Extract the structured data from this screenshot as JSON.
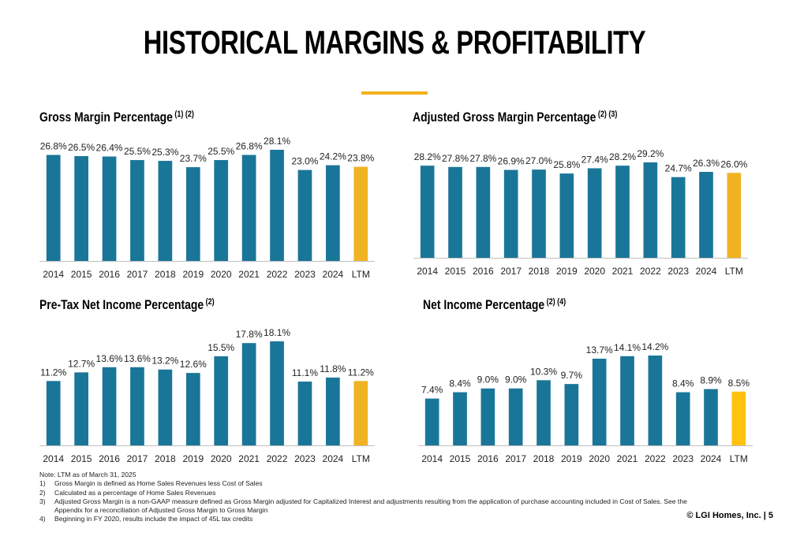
{
  "page": {
    "title": "HISTORICAL MARGINS & PROFITABILITY",
    "footer": "© LGI Homes, Inc. | 5"
  },
  "notes": {
    "lead": "Note: LTM as of March 31, 2025",
    "items": [
      {
        "num": "1)",
        "text": "Gross Margin is defined as Home Sales Revenues less Cost of Sales"
      },
      {
        "num": "2)",
        "text": "Calculated as a percentage of Home Sales Revenues"
      },
      {
        "num": "3)",
        "text": "Adjusted Gross Margin is a non-GAAP measure defined as Gross Margin adjusted for Capitalized Interest and adjustments resulting from the application of purchase accounting included in Cost of Sales. See the Appendix for a reconciliation of Adjusted Gross Margin to Gross Margin"
      },
      {
        "num": "4)",
        "text": "Beginning in FY 2020, results include the impact of 45L tax credits"
      }
    ]
  },
  "colors": {
    "bar": "#1a7698",
    "highlight": "#f0b323",
    "highlight_alt": "#ffc20e",
    "axis": "#bfbfbf",
    "accent_rule": "#f2b21c"
  },
  "chart_data": [
    {
      "type": "bar",
      "title": "Gross Margin Percentage",
      "title_notes": "(1) (2)",
      "categories": [
        "2014",
        "2015",
        "2016",
        "2017",
        "2018",
        "2019",
        "2020",
        "2021",
        "2022",
        "2023",
        "2024",
        "LTM"
      ],
      "values": [
        26.8,
        26.5,
        26.4,
        25.5,
        25.3,
        23.7,
        25.5,
        26.8,
        28.1,
        23.0,
        24.2,
        23.8
      ],
      "labels": [
        "26.8%",
        "26.5%",
        "26.4%",
        "25.5%",
        "25.3%",
        "23.7%",
        "25.5%",
        "26.8%",
        "28.1%",
        "23.0%",
        "24.2%",
        "23.8%"
      ],
      "highlight_index": 11,
      "ylim": [
        0,
        28.1
      ],
      "grid": false
    },
    {
      "type": "bar",
      "title": "Adjusted Gross Margin Percentage",
      "title_notes": "(2) (3)",
      "categories": [
        "2014",
        "2015",
        "2016",
        "2017",
        "2018",
        "2019",
        "2020",
        "2021",
        "2022",
        "2023",
        "2024",
        "LTM"
      ],
      "values": [
        28.2,
        27.8,
        27.8,
        26.9,
        27.0,
        25.8,
        27.4,
        28.2,
        29.2,
        24.7,
        26.3,
        26.0
      ],
      "labels": [
        "28.2%",
        "27.8%",
        "27.8%",
        "26.9%",
        "27.0%",
        "25.8%",
        "27.4%",
        "28.2%",
        "29.2%",
        "24.7%",
        "26.3%",
        "26.0%"
      ],
      "highlight_index": 11,
      "ylim": [
        0,
        29.2
      ],
      "grid": false
    },
    {
      "type": "bar",
      "title": "Pre-Tax Net Income Percentage",
      "title_notes": "(2)",
      "categories": [
        "2014",
        "2015",
        "2016",
        "2017",
        "2018",
        "2019",
        "2020",
        "2021",
        "2022",
        "2023",
        "2024",
        "LTM"
      ],
      "values": [
        11.2,
        12.7,
        13.6,
        13.6,
        13.2,
        12.6,
        15.5,
        17.8,
        18.1,
        11.1,
        11.8,
        11.2
      ],
      "labels": [
        "11.2%",
        "12.7%",
        "13.6%",
        "13.6%",
        "13.2%",
        "12.6%",
        "15.5%",
        "17.8%",
        "18.1%",
        "11.1%",
        "11.8%",
        "11.2%"
      ],
      "highlight_index": 11,
      "ylim": [
        0,
        18.1
      ],
      "grid": false
    },
    {
      "type": "bar",
      "title": "Net Income Percentage",
      "title_notes": "(2) (4)",
      "categories": [
        "2014",
        "2015",
        "2016",
        "2017",
        "2018",
        "2019",
        "2020",
        "2021",
        "2022",
        "2023",
        "2024",
        "LTM"
      ],
      "values": [
        7.4,
        8.4,
        9.0,
        9.0,
        10.3,
        9.7,
        13.7,
        14.1,
        14.2,
        8.4,
        8.9,
        8.5
      ],
      "labels": [
        "7.4%",
        "8.4%",
        "9.0%",
        "9.0%",
        "10.3%",
        "9.7%",
        "13.7%",
        "14.1%",
        "14.2%",
        "8.4%",
        "8.9%",
        "8.5%"
      ],
      "highlight_index": 11,
      "ylim": [
        0,
        14.2
      ],
      "grid": false
    }
  ]
}
